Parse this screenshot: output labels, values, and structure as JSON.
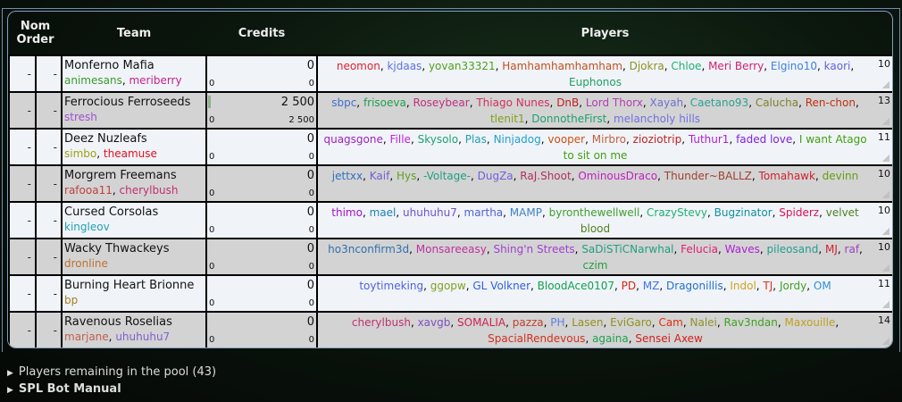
{
  "headers": {
    "nom_order": "Nom Order",
    "team": "Team",
    "credits": "Credits",
    "players": "Players"
  },
  "teams": [
    {
      "name": "Monferno Mafia",
      "coaches": [
        {
          "name": "animesans",
          "color": "#3a9a2a"
        },
        {
          "name": "meriberry",
          "color": "#c8208a"
        }
      ],
      "order1": "-",
      "order2": "-",
      "credits": "0",
      "credits_left": "0",
      "credits_right": "0",
      "progress": 0,
      "count": "10",
      "players": [
        {
          "name": "neomon",
          "color": "#e02030"
        },
        {
          "name": "kjdaas",
          "color": "#5a70e0"
        },
        {
          "name": "yovan33321",
          "color": "#50a020"
        },
        {
          "name": "Hamhamhamhamham",
          "color": "#c05020"
        },
        {
          "name": "Djokra",
          "color": "#909020"
        },
        {
          "name": "Chloe",
          "color": "#20b070"
        },
        {
          "name": "Meri Berry",
          "color": "#d02070"
        },
        {
          "name": "Elgino10",
          "color": "#4080e0"
        },
        {
          "name": "kaori",
          "color": "#6060e0"
        },
        {
          "name": "Euphonos",
          "color": "#20a060"
        }
      ]
    },
    {
      "name": "Ferrocious Ferroseeds",
      "coaches": [
        {
          "name": "stresh",
          "color": "#a050d0"
        }
      ],
      "order1": "-",
      "order2": "-",
      "credits": "2 500",
      "credits_left": "0",
      "credits_right": "2 500",
      "progress": 0.02,
      "count": "13",
      "players": [
        {
          "name": "sbpc",
          "color": "#4070d0"
        },
        {
          "name": "frisoeva",
          "color": "#20a050"
        },
        {
          "name": "Roseybear",
          "color": "#c03080"
        },
        {
          "name": "Thiago Nunes",
          "color": "#d03060"
        },
        {
          "name": "DnB",
          "color": "#c02020"
        },
        {
          "name": "Lord Thorx",
          "color": "#b040b0"
        },
        {
          "name": "Xayah",
          "color": "#7070d0"
        },
        {
          "name": "Caetano93",
          "color": "#30a090"
        },
        {
          "name": "Calucha",
          "color": "#808030"
        },
        {
          "name": "Ren-chon",
          "color": "#c03010"
        },
        {
          "name": "tlenit1",
          "color": "#80a020"
        },
        {
          "name": "DonnotheFirst",
          "color": "#20a070"
        },
        {
          "name": "melancholy hills",
          "color": "#7070e0"
        }
      ]
    },
    {
      "name": "Deez Nuzleafs",
      "coaches": [
        {
          "name": "simbo",
          "color": "#a0a010"
        },
        {
          "name": "theamuse",
          "color": "#e01020"
        }
      ],
      "order1": "-",
      "order2": "-",
      "credits": "0",
      "credits_left": "0",
      "credits_right": "0",
      "progress": 0,
      "count": "11",
      "players": [
        {
          "name": "quagsgone",
          "color": "#a020c0"
        },
        {
          "name": "Fille",
          "color": "#c020e0"
        },
        {
          "name": "Skysolo",
          "color": "#20a070"
        },
        {
          "name": "Plas",
          "color": "#20a0b0"
        },
        {
          "name": "Ninjadog",
          "color": "#20a0d0"
        },
        {
          "name": "vooper",
          "color": "#d05010"
        },
        {
          "name": "Mirbro",
          "color": "#c06040"
        },
        {
          "name": "zioziotrip",
          "color": "#c02020"
        },
        {
          "name": "Tuthur1",
          "color": "#b020d0"
        },
        {
          "name": "faded love",
          "color": "#8020e0"
        },
        {
          "name": "I want Atago to sit on me",
          "color": "#40a010"
        }
      ]
    },
    {
      "name": "Morgrem Freemans",
      "coaches": [
        {
          "name": "rafooa11",
          "color": "#c04040"
        },
        {
          "name": "cherylbush",
          "color": "#c03070"
        }
      ],
      "order1": "-",
      "order2": "-",
      "credits": "0",
      "credits_left": "0",
      "credits_right": "0",
      "progress": 0,
      "count": "10",
      "players": [
        {
          "name": "jettxx",
          "color": "#3070c0"
        },
        {
          "name": "Kaif",
          "color": "#7060d0"
        },
        {
          "name": "Hys",
          "color": "#60a020"
        },
        {
          "name": "-Voltage-",
          "color": "#20a080"
        },
        {
          "name": "DugZa",
          "color": "#7060e0"
        },
        {
          "name": "RaJ.Shoot",
          "color": "#b03060"
        },
        {
          "name": "OminousDraco",
          "color": "#c020c0"
        },
        {
          "name": "Thunder~BALLZ",
          "color": "#a04030"
        },
        {
          "name": "Tomahawk",
          "color": "#d02030"
        },
        {
          "name": "devinn",
          "color": "#60a010"
        }
      ]
    },
    {
      "name": "Cursed Corsolas",
      "coaches": [
        {
          "name": "kingleov",
          "color": "#20a0b0"
        }
      ],
      "order1": "-",
      "order2": "-",
      "credits": "0",
      "credits_left": "0",
      "credits_right": "0",
      "progress": 0,
      "count": "10",
      "players": [
        {
          "name": "thimo",
          "color": "#a010d0"
        },
        {
          "name": "mael",
          "color": "#2080b0"
        },
        {
          "name": "uhuhuhu7",
          "color": "#7050d0"
        },
        {
          "name": "martha",
          "color": "#5060d0"
        },
        {
          "name": "MAMP",
          "color": "#4080c0"
        },
        {
          "name": "byronthewellwell",
          "color": "#40a030"
        },
        {
          "name": "CrazyStevy",
          "color": "#20b070"
        },
        {
          "name": "Bugzinator",
          "color": "#1090a0"
        },
        {
          "name": "Spiderz",
          "color": "#e01050"
        },
        {
          "name": "velvet blood",
          "color": "#508020"
        }
      ]
    },
    {
      "name": "Wacky Thwackeys",
      "coaches": [
        {
          "name": "dronline",
          "color": "#c07030"
        }
      ],
      "order1": "-",
      "order2": "-",
      "credits": "0",
      "credits_left": "0",
      "credits_right": "0",
      "progress": 0,
      "count": "10",
      "players": [
        {
          "name": "ho3nconfirm3d",
          "color": "#3070b0"
        },
        {
          "name": "Monsareeasy",
          "color": "#c030a0"
        },
        {
          "name": "Shing'n Streets",
          "color": "#a040d0"
        },
        {
          "name": "SaDiSTiCNarwhal",
          "color": "#20a080"
        },
        {
          "name": "Felucia",
          "color": "#e02070"
        },
        {
          "name": "Waves",
          "color": "#b020d0"
        },
        {
          "name": "pileosand",
          "color": "#20a090"
        },
        {
          "name": "MJ",
          "color": "#d02030"
        },
        {
          "name": "raf",
          "color": "#a040c0"
        },
        {
          "name": "czim",
          "color": "#20a040"
        }
      ]
    },
    {
      "name": "Burning Heart Brionne",
      "coaches": [
        {
          "name": "bp",
          "color": "#a08020"
        }
      ],
      "order1": "-",
      "order2": "-",
      "credits": "0",
      "credits_left": "0",
      "credits_right": "0",
      "progress": 0,
      "count": "11",
      "players": [
        {
          "name": "toytimeking",
          "color": "#5060e0"
        },
        {
          "name": "ggopw",
          "color": "#80a020"
        },
        {
          "name": "GL Volkner",
          "color": "#3060e0"
        },
        {
          "name": "BloodAce0107",
          "color": "#10a050"
        },
        {
          "name": "PD",
          "color": "#e02010"
        },
        {
          "name": "MZ",
          "color": "#4070f0"
        },
        {
          "name": "Dragonillis",
          "color": "#2070d0"
        },
        {
          "name": "Indol",
          "color": "#d0a020"
        },
        {
          "name": "TJ",
          "color": "#e03020"
        },
        {
          "name": "Jordy",
          "color": "#40a020"
        },
        {
          "name": "OM",
          "color": "#3090d0"
        }
      ]
    },
    {
      "name": "Ravenous Roselias",
      "coaches": [
        {
          "name": "marjane",
          "color": "#c06050"
        },
        {
          "name": "uhuhuhu7",
          "color": "#8060d0"
        }
      ],
      "order1": "-",
      "order2": "-",
      "credits": "0",
      "credits_left": "0",
      "credits_right": "0",
      "progress": 0,
      "count": "14",
      "players": [
        {
          "name": "cherylbush",
          "color": "#c03070"
        },
        {
          "name": "xavgb",
          "color": "#8050c0"
        },
        {
          "name": "SOMALIA",
          "color": "#d02050"
        },
        {
          "name": "pazza",
          "color": "#c04030"
        },
        {
          "name": "PH",
          "color": "#6080e0"
        },
        {
          "name": "Lasen",
          "color": "#909020"
        },
        {
          "name": "EviGaro",
          "color": "#909020"
        },
        {
          "name": "Cam",
          "color": "#e03010"
        },
        {
          "name": "Nalei",
          "color": "#909030"
        },
        {
          "name": "Rav3ndan",
          "color": "#40a020"
        },
        {
          "name": "Maxouille",
          "color": "#c0a020"
        },
        {
          "name": "SpacialRendevous",
          "color": "#d03020"
        },
        {
          "name": "againa",
          "color": "#20a050"
        },
        {
          "name": "Sensei Axew",
          "color": "#d02020"
        }
      ]
    }
  ],
  "footer": {
    "pool_label": "Players remaining in the pool (43)",
    "manual_label": "SPL Bot Manual"
  }
}
